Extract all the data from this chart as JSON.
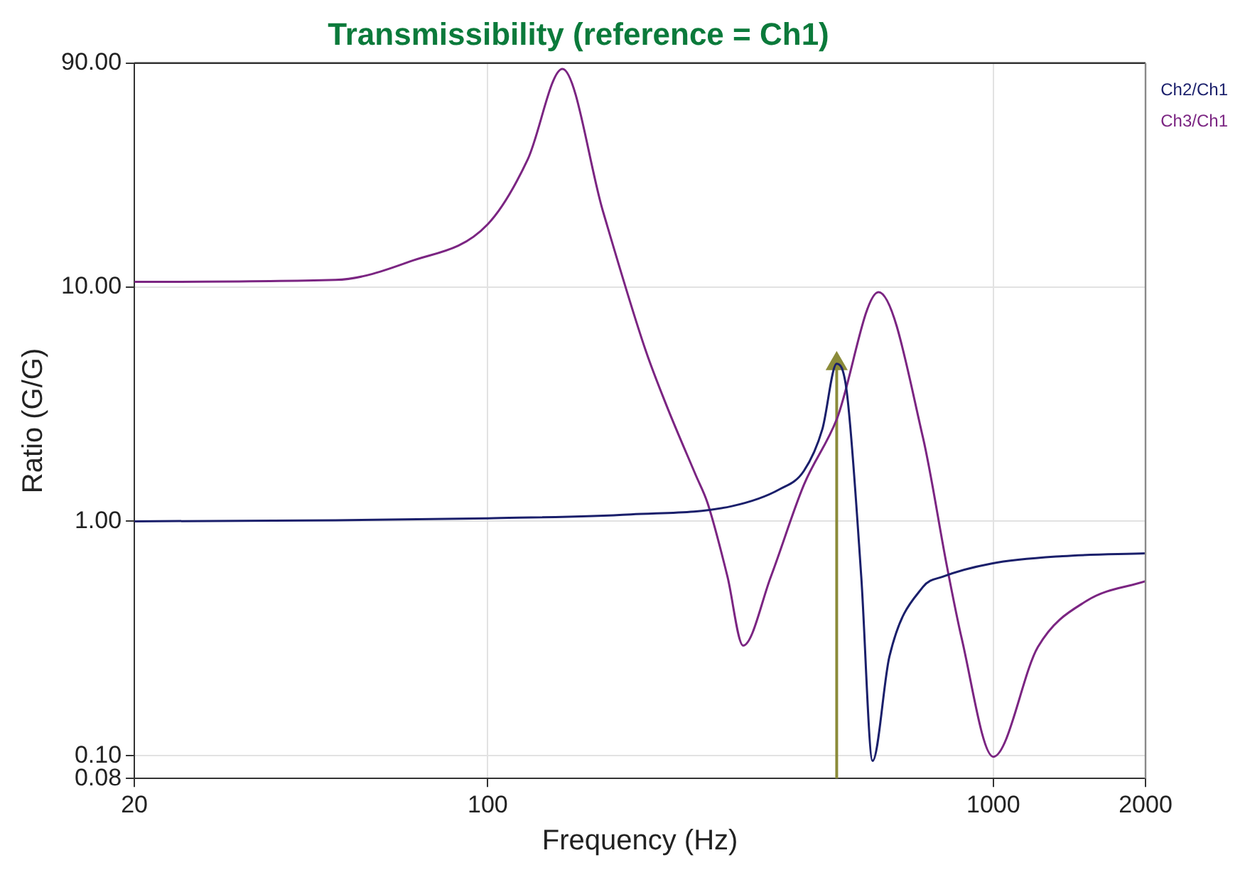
{
  "chart_data": {
    "type": "line",
    "title": "Transmissibility (reference = Ch1)",
    "xlabel": "Frequency (Hz)",
    "ylabel": "Ratio (G/G)",
    "log": "xy",
    "grid": true,
    "legend": "top right",
    "marker": "none",
    "line_style": "solid",
    "xlim": [
      20,
      2000
    ],
    "xticks": [
      20,
      100,
      1000,
      2000
    ],
    "ylim": [
      0.08,
      90
    ],
    "yticks": [
      {
        "value": 0.08,
        "label": "0.08"
      },
      {
        "value": 0.1,
        "label": "0.10"
      },
      {
        "value": 1,
        "label": "1.00"
      },
      {
        "value": 10,
        "label": "10.00"
      },
      {
        "value": 90,
        "label": "90.00"
      }
    ],
    "series": [
      {
        "name": "Ch2/Ch1",
        "color": "#1a1f6b",
        "x": [
          20,
          50,
          100,
          192,
          304,
          378,
          422,
          459,
          490,
          513,
          548,
          577,
          623,
          726,
          794,
          990,
          1370,
          2000
        ],
        "values": [
          1.0,
          1.01,
          1.03,
          1.07,
          1.16,
          1.37,
          1.64,
          2.47,
          4.7,
          3.57,
          0.58,
          0.095,
          0.265,
          0.525,
          0.58,
          0.66,
          0.71,
          0.73
        ]
      },
      {
        "name": "Ch3/Ch1",
        "color": "#7b2582",
        "x": [
          20,
          50,
          70,
          100,
          120,
          140.5,
          169,
          205,
          226,
          258,
          272,
          298,
          320,
          363,
          422,
          490,
          593,
          726,
          811,
          866,
          1000,
          1225,
          1530,
          2000
        ],
        "values": [
          10.5,
          10.7,
          12.8,
          18.5,
          35,
          85,
          21,
          5.4,
          3.1,
          1.57,
          1.2,
          0.58,
          0.295,
          0.58,
          1.43,
          2.72,
          9.5,
          2.27,
          0.63,
          0.316,
          0.099,
          0.291,
          0.458,
          0.555
        ]
      },
      {
        "type": "line",
        "color": "#8b8b3a",
        "marker": "triangle",
        "x": [
          490,
          490
        ],
        "values": [
          0.08,
          4.7
        ]
      }
    ]
  }
}
